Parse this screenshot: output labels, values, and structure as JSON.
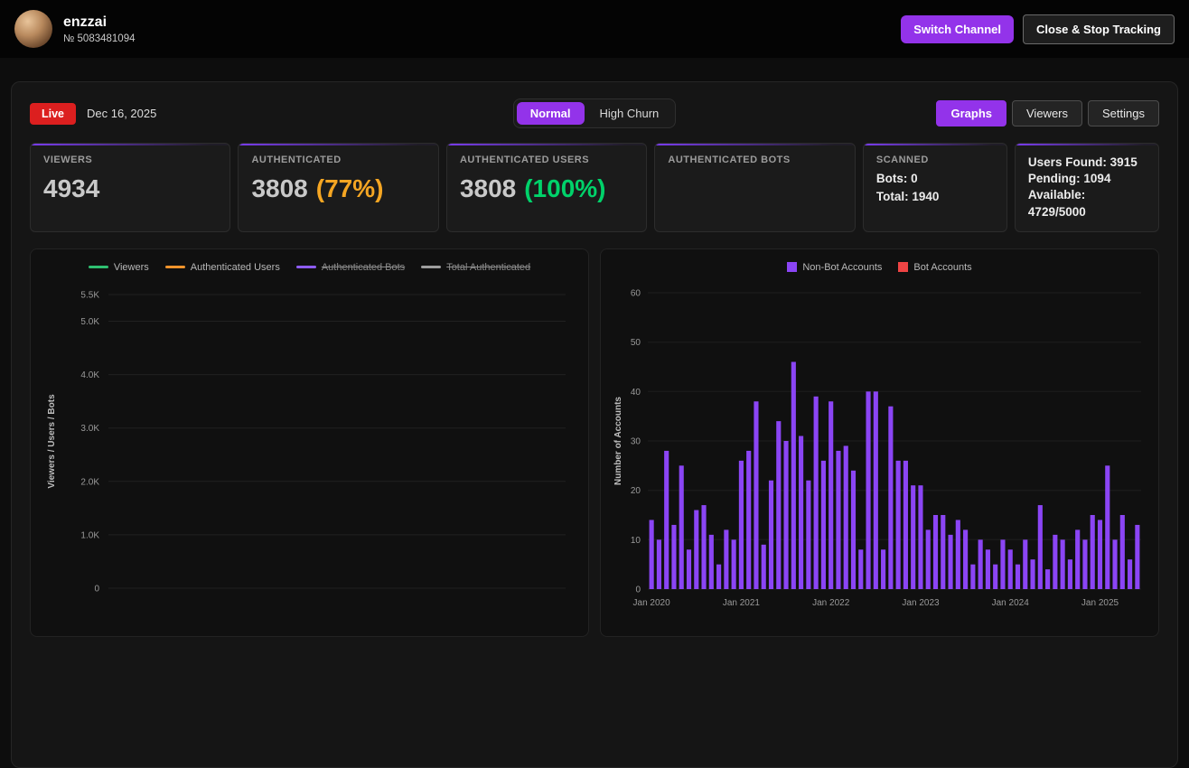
{
  "header": {
    "username": "enzzai",
    "user_id": "№ 5083481094",
    "buttons": {
      "switch_channel": "Switch Channel",
      "close_stop": "Close & Stop Tracking"
    }
  },
  "toolbar": {
    "live": "Live",
    "date": "Dec 16, 2025",
    "modes": {
      "normal": "Normal",
      "high_churn": "High Churn"
    },
    "views": {
      "graphs": "Graphs",
      "viewers": "Viewers",
      "settings": "Settings"
    }
  },
  "stats": {
    "viewers": {
      "label": "VIEWERS",
      "value": "4934"
    },
    "authenticated": {
      "label": "AUTHENTICATED",
      "value": "3808",
      "percent": "(77%)"
    },
    "authenticated_users": {
      "label": "AUTHENTICATED USERS",
      "value": "3808",
      "percent": "(100%)"
    },
    "authenticated_bots": {
      "label": "AUTHENTICATED BOTS"
    },
    "scanned": {
      "label": "SCANNED",
      "bots": "Bots: 0",
      "total": "Total: 1940"
    },
    "account": {
      "users_found": "Users Found: 3915",
      "pending": "Pending: 1094",
      "available": "Available: 4729/5000"
    }
  },
  "colors": {
    "accent_purple": "#9333ea",
    "live_red": "#dc1f1f",
    "percent_orange": "#f5a623",
    "percent_green": "#00d26a",
    "bar_purple": "#8b45f5",
    "bot_red": "#ef4444",
    "viewers_green": "#2fbf71",
    "auth_users_orange": "#f0932b",
    "auth_bots_purple": "#8e5cf7",
    "total_auth_gray": "#9e9e9e"
  },
  "chart_data": [
    {
      "type": "line",
      "title": "",
      "ylabel": "Viewers / Users / Bots",
      "ylim": [
        0,
        5500
      ],
      "yticks": [
        {
          "v": 5500,
          "label": "5.5K"
        },
        {
          "v": 5000,
          "label": "5.0K"
        },
        {
          "v": 4000,
          "label": "4.0K"
        },
        {
          "v": 3000,
          "label": "3.0K"
        },
        {
          "v": 2000,
          "label": "2.0K"
        },
        {
          "v": 1000,
          "label": "1.0K"
        },
        {
          "v": 0,
          "label": "0"
        }
      ],
      "legend": [
        {
          "label": "Viewers",
          "color": "#2fbf71",
          "hidden": false
        },
        {
          "label": "Authenticated Users",
          "color": "#f0932b",
          "hidden": false
        },
        {
          "label": "Authenticated Bots",
          "color": "#8e5cf7",
          "hidden": true
        },
        {
          "label": "Total Authenticated",
          "color": "#9e9e9e",
          "hidden": true
        }
      ],
      "series": [
        {
          "name": "Viewers",
          "color": "#2fbf71",
          "points": []
        },
        {
          "name": "Authenticated Users",
          "color": "#f0932b",
          "points": []
        }
      ]
    },
    {
      "type": "bar",
      "title": "",
      "ylabel": "Number of Accounts",
      "ylim": [
        0,
        60
      ],
      "ytick_step": 10,
      "x_start": "Jan 2020",
      "x_interval": "monthly",
      "xtick_labels": [
        "Jan 2020",
        "Jan 2021",
        "Jan 2022",
        "Jan 2023",
        "Jan 2024",
        "Jan 2025"
      ],
      "legend": [
        {
          "label": "Non-Bot Accounts",
          "color": "#8b45f5",
          "hidden": false
        },
        {
          "label": "Bot Accounts",
          "color": "#ef4444",
          "hidden": false
        }
      ],
      "series": [
        {
          "name": "Non-Bot Accounts",
          "color": "#8b45f5",
          "values": [
            14,
            10,
            28,
            13,
            25,
            8,
            16,
            17,
            11,
            5,
            12,
            10,
            26,
            28,
            38,
            9,
            22,
            34,
            30,
            46,
            31,
            22,
            39,
            26,
            38,
            28,
            29,
            24,
            8,
            40,
            40,
            8,
            37,
            26,
            26,
            21,
            21,
            12,
            15,
            15,
            11,
            14,
            12,
            5,
            10,
            8,
            5,
            10,
            8,
            5,
            10,
            6,
            17,
            4,
            11,
            10,
            6,
            12,
            10,
            15,
            14,
            25,
            10,
            15,
            6,
            13
          ]
        },
        {
          "name": "Bot Accounts",
          "color": "#ef4444",
          "values": [
            0,
            0,
            0,
            0,
            0,
            0,
            0,
            0,
            0,
            0,
            0,
            0,
            0,
            0,
            0,
            0,
            0,
            0,
            0,
            0,
            0,
            0,
            0,
            0,
            0,
            0,
            0,
            0,
            0,
            0,
            0,
            0,
            0,
            0,
            0,
            0,
            0,
            0,
            0,
            0,
            0,
            0,
            0,
            0,
            0,
            0,
            0,
            0,
            0,
            0,
            0,
            0,
            0,
            0,
            0,
            0,
            0,
            0,
            0,
            0,
            0,
            0,
            0,
            0,
            0,
            0
          ]
        }
      ]
    }
  ]
}
